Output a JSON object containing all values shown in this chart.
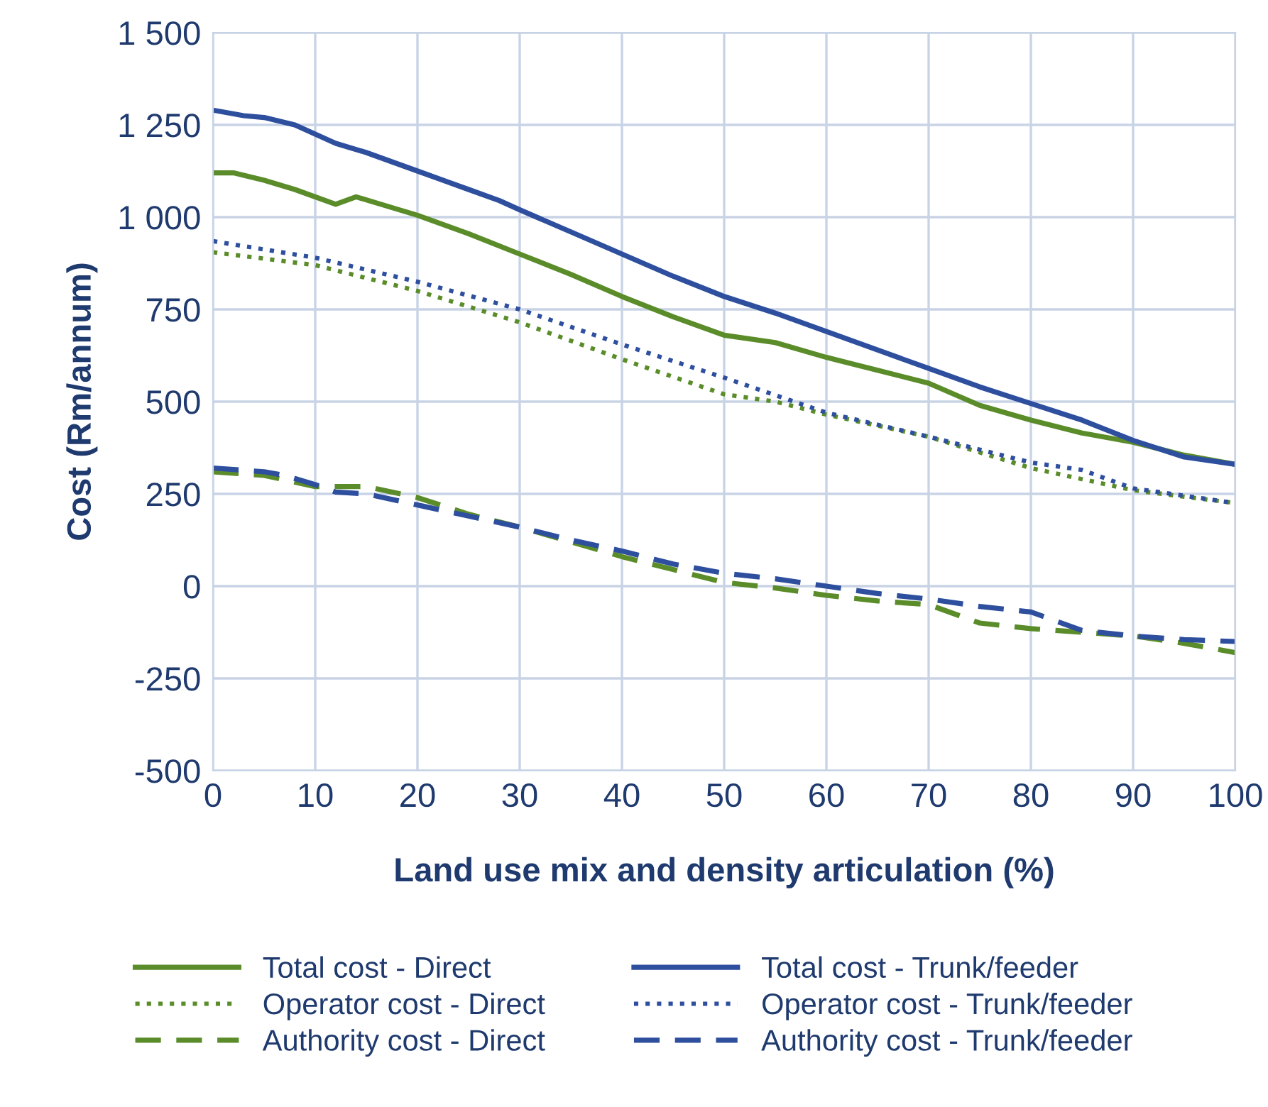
{
  "chart_data": {
    "type": "line",
    "xlabel": "Land use mix and density articulation (%)",
    "ylabel": "Cost (Rm/annum)",
    "xlim": [
      0,
      100
    ],
    "xticks": [
      0,
      10,
      20,
      30,
      40,
      50,
      60,
      70,
      80,
      90,
      100
    ],
    "ylim": [
      -500,
      1500
    ],
    "yticks": [
      -500,
      -250,
      0,
      250,
      500,
      750,
      1000,
      1250,
      {
        "value": 1500,
        "label": "1 500"
      }
    ],
    "grid": true,
    "legend": "bottom",
    "series": [
      {
        "name": "Total cost - Direct",
        "color": "#5b8c2a",
        "line_style": "solid",
        "x": [
          0,
          2,
          5,
          8,
          12,
          14,
          17,
          20,
          25,
          30,
          35,
          40,
          45,
          50,
          55,
          60,
          65,
          70,
          75,
          80,
          85,
          90,
          95,
          100
        ],
        "values": [
          1120,
          1120,
          1100,
          1075,
          1035,
          1055,
          1030,
          1005,
          955,
          900,
          845,
          785,
          730,
          680,
          660,
          620,
          585,
          550,
          490,
          450,
          415,
          390,
          355,
          330
        ]
      },
      {
        "name": "Total cost - Trunk/feeder",
        "color": "#2e4f9e",
        "line_style": "solid",
        "x": [
          0,
          3,
          5,
          8,
          12,
          15,
          20,
          25,
          28,
          30,
          35,
          40,
          45,
          50,
          55,
          60,
          65,
          70,
          75,
          80,
          85,
          90,
          95,
          100
        ],
        "values": [
          1290,
          1275,
          1270,
          1250,
          1200,
          1175,
          1125,
          1075,
          1045,
          1020,
          960,
          900,
          840,
          785,
          740,
          690,
          640,
          590,
          540,
          495,
          450,
          395,
          350,
          330
        ]
      },
      {
        "name": "Operator cost - Direct",
        "color": "#5b8c2a",
        "line_style": "dotted",
        "x": [
          0,
          10,
          20,
          30,
          40,
          50,
          55,
          60,
          70,
          80,
          90,
          100
        ],
        "values": [
          905,
          870,
          800,
          715,
          615,
          520,
          500,
          465,
          405,
          320,
          260,
          225
        ]
      },
      {
        "name": "Operator cost - Trunk/feeder",
        "color": "#2e4f9e",
        "line_style": "dotted",
        "x": [
          0,
          10,
          20,
          30,
          40,
          50,
          60,
          70,
          75,
          80,
          85,
          90,
          95,
          100
        ],
        "values": [
          935,
          890,
          825,
          750,
          655,
          565,
          470,
          405,
          370,
          335,
          315,
          265,
          245,
          225
        ]
      },
      {
        "name": "Authority cost - Direct",
        "color": "#5b8c2a",
        "line_style": "dashed",
        "x": [
          0,
          5,
          10,
          15,
          20,
          25,
          30,
          35,
          40,
          45,
          50,
          55,
          60,
          65,
          70,
          75,
          80,
          85,
          90,
          95,
          100
        ],
        "values": [
          310,
          300,
          270,
          270,
          240,
          195,
          160,
          120,
          80,
          45,
          10,
          -5,
          -25,
          -40,
          -50,
          -100,
          -115,
          -125,
          -135,
          -155,
          -180
        ]
      },
      {
        "name": "Authority cost - Trunk/feeder",
        "color": "#2e4f9e",
        "line_style": "dashed",
        "x": [
          0,
          5,
          7,
          10,
          12,
          15,
          20,
          25,
          30,
          35,
          40,
          45,
          50,
          55,
          60,
          65,
          70,
          75,
          80,
          85,
          90,
          95,
          100
        ],
        "values": [
          320,
          310,
          300,
          275,
          255,
          250,
          220,
          190,
          160,
          125,
          95,
          60,
          35,
          20,
          0,
          -20,
          -35,
          -55,
          -70,
          -120,
          -135,
          -145,
          -150
        ]
      }
    ]
  }
}
